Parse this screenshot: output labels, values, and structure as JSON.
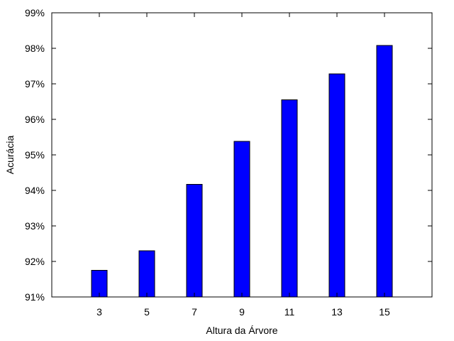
{
  "chart_data": {
    "type": "bar",
    "xlabel": "Altura da Árvore",
    "ylabel": "Acurácia",
    "categories": [
      "3",
      "5",
      "7",
      "9",
      "11",
      "13",
      "15"
    ],
    "x": [
      3,
      5,
      7,
      9,
      11,
      13,
      15
    ],
    "values": [
      91.75,
      92.3,
      94.17,
      95.38,
      96.55,
      97.28,
      98.08
    ],
    "xlim": [
      1,
      17
    ],
    "ylim": [
      91,
      99
    ],
    "y_ticks": [
      "91%",
      "92%",
      "93%",
      "94%",
      "95%",
      "96%",
      "97%",
      "98%",
      "99%"
    ],
    "y_tick_values": [
      91,
      92,
      93,
      94,
      95,
      96,
      97,
      98,
      99
    ],
    "grid": false,
    "colors": {
      "bar_fill": "#0000ff",
      "bar_stroke": "#000000",
      "axis": "#000000"
    }
  }
}
